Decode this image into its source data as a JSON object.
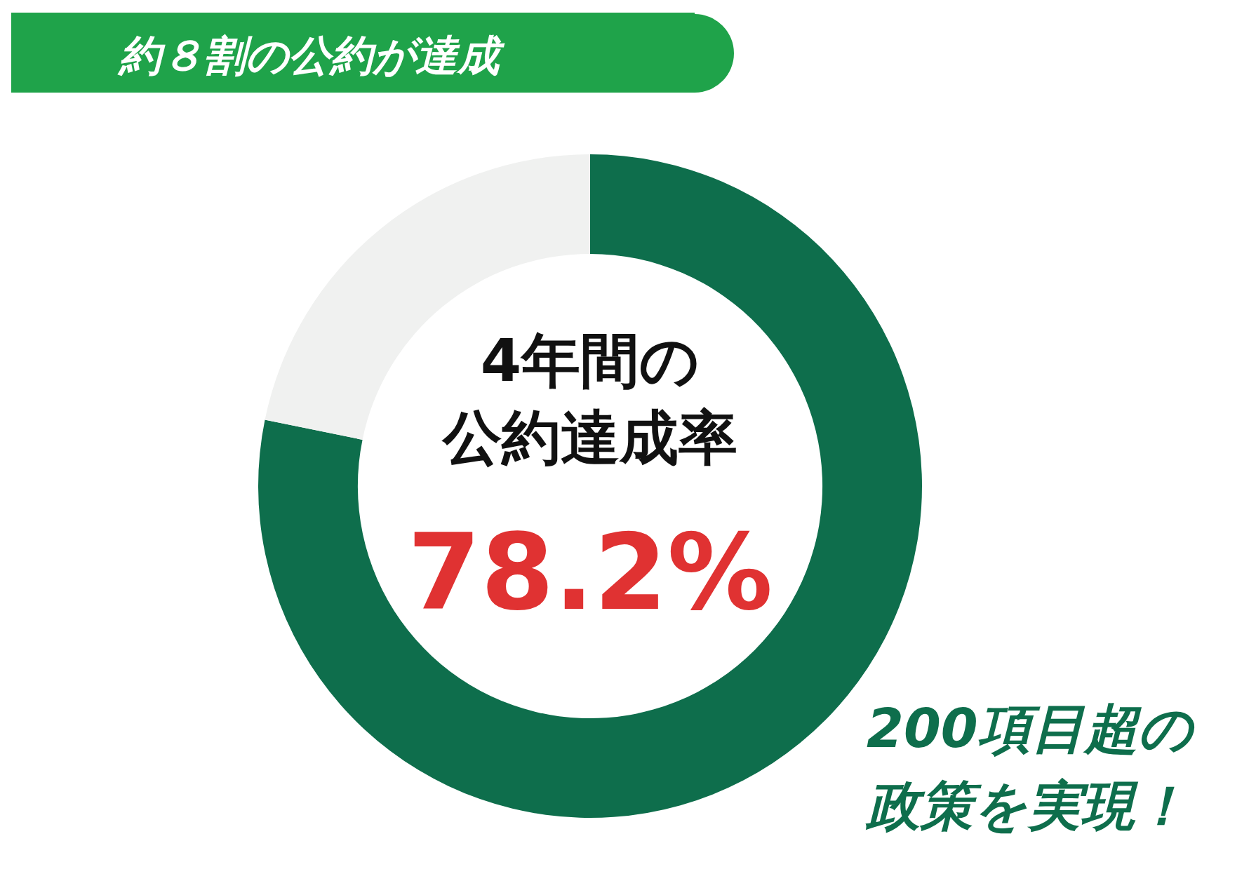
{
  "chart_data": {
    "type": "donut",
    "title": "約８割の公約が達成",
    "categories": [
      null,
      null
    ],
    "values": [
      78.2,
      21.8
    ],
    "colors": [
      "#0e6e4c",
      "#f0f1f0"
    ],
    "value_labels": [
      "78.2%",
      null
    ],
    "annotations": [
      "4年間の公約達成率",
      "200項目超の政策を実現！"
    ]
  }
}
